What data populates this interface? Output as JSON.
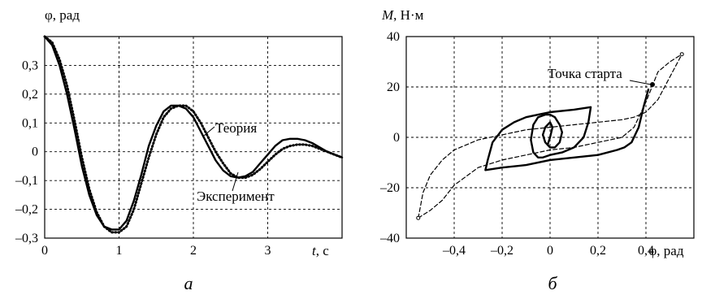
{
  "panels": {
    "left_label": "а",
    "right_label": "б"
  },
  "chart_data": [
    {
      "type": "line",
      "ylabel": "φ, рад",
      "xlabel_italic": "t",
      "xlabel_unit": ", с",
      "xlim": [
        0,
        4
      ],
      "ylim": [
        -0.3,
        0.4
      ],
      "x_ticks": [
        0,
        1,
        2,
        3
      ],
      "x_tick_labels": [
        "0",
        "1",
        "2",
        "3"
      ],
      "y_ticks": [
        0.3,
        0.2,
        0.1,
        0,
        -0.1,
        -0.2,
        -0.3
      ],
      "y_tick_labels": [
        "0,3",
        "0,2",
        "0,1",
        "0",
        "–0,1",
        "–0,2",
        "–0,3"
      ],
      "grid": true,
      "annotations": [
        "Теория",
        "Эксперимент"
      ],
      "series": [
        {
          "name": "Эксперимент",
          "style": "solid",
          "x": [
            0,
            0.1,
            0.2,
            0.3,
            0.4,
            0.5,
            0.6,
            0.7,
            0.8,
            0.9,
            1.0,
            1.1,
            1.2,
            1.3,
            1.4,
            1.5,
            1.6,
            1.7,
            1.8,
            1.9,
            2.0,
            2.1,
            2.2,
            2.3,
            2.4,
            2.5,
            2.6,
            2.7,
            2.8,
            2.9,
            3.0,
            3.1,
            3.2,
            3.3,
            3.4,
            3.5,
            3.6,
            3.7,
            3.8,
            3.9,
            4.0
          ],
          "values": [
            0.4,
            0.37,
            0.3,
            0.2,
            0.08,
            -0.05,
            -0.15,
            -0.22,
            -0.26,
            -0.27,
            -0.27,
            -0.24,
            -0.17,
            -0.08,
            0.02,
            0.09,
            0.14,
            0.16,
            0.16,
            0.15,
            0.12,
            0.07,
            0.02,
            -0.03,
            -0.065,
            -0.085,
            -0.09,
            -0.085,
            -0.07,
            -0.04,
            -0.01,
            0.02,
            0.04,
            0.045,
            0.045,
            0.04,
            0.03,
            0.015,
            0.0,
            -0.01,
            -0.02
          ]
        },
        {
          "name": "Теория",
          "style": "dotted",
          "x": [
            0,
            0.1,
            0.2,
            0.3,
            0.4,
            0.5,
            0.6,
            0.7,
            0.8,
            0.9,
            1.0,
            1.1,
            1.2,
            1.3,
            1.4,
            1.5,
            1.6,
            1.7,
            1.8,
            1.9,
            2.0,
            2.1,
            2.2,
            2.3,
            2.4,
            2.5,
            2.6,
            2.7,
            2.8,
            2.9,
            3.0,
            3.1,
            3.2,
            3.3,
            3.4,
            3.5,
            3.6,
            3.7,
            3.8,
            3.9,
            4.0
          ],
          "values": [
            0.4,
            0.38,
            0.32,
            0.23,
            0.11,
            -0.02,
            -0.13,
            -0.21,
            -0.26,
            -0.28,
            -0.28,
            -0.26,
            -0.2,
            -0.11,
            -0.02,
            0.06,
            0.12,
            0.15,
            0.16,
            0.16,
            0.14,
            0.1,
            0.05,
            0.0,
            -0.04,
            -0.075,
            -0.09,
            -0.09,
            -0.08,
            -0.06,
            -0.035,
            -0.01,
            0.01,
            0.02,
            0.025,
            0.025,
            0.02,
            0.01,
            0.0,
            -0.01,
            -0.02
          ]
        }
      ]
    },
    {
      "type": "line",
      "ylabel_italic": "M",
      "ylabel_unit": ", Н·м",
      "xlabel": "φ, рад",
      "xlim": [
        -0.6,
        0.6
      ],
      "ylim": [
        -40,
        40
      ],
      "x_ticks": [
        -0.4,
        -0.2,
        0,
        0.2,
        0.4
      ],
      "x_tick_labels": [
        "–0,4",
        "–0,2",
        "0",
        "0,2",
        "0,4"
      ],
      "y_ticks": [
        40,
        20,
        0,
        -20,
        -40
      ],
      "y_tick_labels": [
        "40",
        "20",
        "0",
        "–20",
        "–40"
      ],
      "grid": true,
      "annotations": [
        "Точка старта"
      ],
      "series": [
        {
          "style": "dashed",
          "x": [
            -0.55,
            -0.53,
            -0.5,
            -0.45,
            -0.4,
            -0.3,
            -0.2,
            -0.1,
            0.0,
            0.1,
            0.2,
            0.3,
            0.35,
            0.4,
            0.45,
            0.5,
            0.55
          ],
          "values": [
            -32,
            -22,
            -15,
            -9,
            -5,
            -1,
            1,
            3,
            4,
            5,
            6,
            7,
            8,
            10,
            15,
            24,
            33
          ]
        },
        {
          "style": "dashed",
          "x": [
            -0.55,
            -0.5,
            -0.45,
            -0.4,
            -0.3,
            -0.2,
            -0.1,
            0.0,
            0.1,
            0.2,
            0.3,
            0.35,
            0.4,
            0.45,
            0.5,
            0.55
          ],
          "values": [
            -32,
            -29,
            -25,
            -19,
            -12,
            -9,
            -7,
            -5,
            -4,
            -2,
            0,
            4,
            14,
            26,
            30,
            33
          ]
        },
        {
          "style": "solid",
          "x": [
            0.41,
            0.39,
            0.37,
            0.34,
            0.31,
            0.28,
            0.2,
            0.1,
            0.0,
            -0.1,
            -0.2,
            -0.27,
            -0.26,
            -0.24,
            -0.2,
            -0.15,
            -0.1,
            -0.05,
            0.0,
            0.1,
            0.17,
            0.16,
            0.14,
            0.1,
            0.05,
            0.0,
            -0.03,
            -0.05,
            -0.07,
            -0.08,
            -0.07,
            -0.05,
            -0.02,
            0.0,
            0.02,
            0.04,
            0.05,
            0.04,
            0.02,
            0.0,
            -0.02,
            -0.03,
            -0.02,
            0.0,
            0.01,
            0.0,
            -0.01
          ],
          "values": [
            19,
            12,
            4,
            -2,
            -4,
            -5,
            -7,
            -8,
            -9,
            -11,
            -12,
            -13,
            -9,
            -2,
            3,
            6,
            8,
            9,
            10,
            11,
            12,
            6,
            0,
            -4,
            -6,
            -7,
            -8,
            -8,
            -6,
            -1,
            5,
            8,
            9,
            9,
            8,
            5,
            2,
            -2,
            -4,
            -4,
            -2,
            1,
            4,
            6,
            4,
            0,
            -3
          ]
        }
      ]
    }
  ]
}
